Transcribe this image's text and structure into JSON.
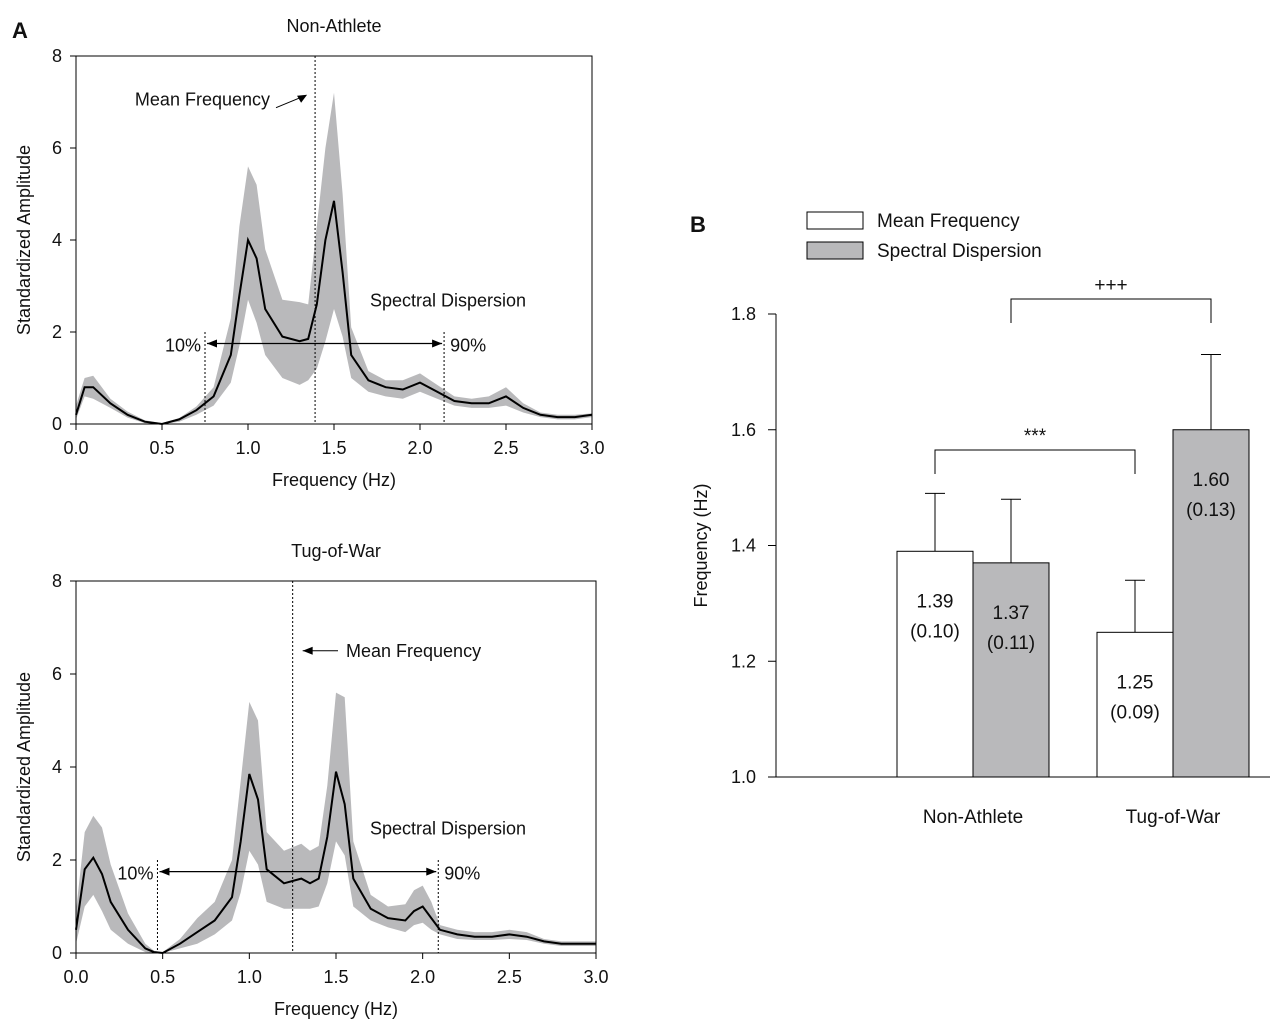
{
  "panel_labels": {
    "a": "A",
    "b": "B"
  },
  "colors": {
    "band": "#b9b9bb",
    "line": "#000000",
    "bar_white": "#ffffff",
    "bar_gray": "#b9b9bb",
    "axis": "#000000"
  },
  "chart_data": [
    {
      "type": "area",
      "panel": "A",
      "title": "Non-Athlete",
      "xlabel": "Frequency (Hz)",
      "ylabel": "Standardized Amplitude",
      "xlim": [
        0,
        3
      ],
      "ylim": [
        0,
        8
      ],
      "xticks": [
        "0.0",
        "0.5",
        "1.0",
        "1.5",
        "2.0",
        "2.5",
        "3.0"
      ],
      "yticks": [
        "0",
        "2",
        "4",
        "6",
        "8"
      ],
      "x": [
        0.0,
        0.05,
        0.1,
        0.2,
        0.3,
        0.4,
        0.5,
        0.6,
        0.7,
        0.8,
        0.9,
        0.95,
        1.0,
        1.05,
        1.1,
        1.2,
        1.3,
        1.35,
        1.4,
        1.45,
        1.5,
        1.55,
        1.6,
        1.7,
        1.8,
        1.9,
        2.0,
        2.1,
        2.2,
        2.3,
        2.4,
        2.5,
        2.6,
        2.7,
        2.8,
        2.9,
        3.0
      ],
      "mean": [
        0.2,
        0.8,
        0.8,
        0.45,
        0.2,
        0.05,
        0.0,
        0.1,
        0.3,
        0.6,
        1.5,
        2.8,
        4.0,
        3.6,
        2.5,
        1.9,
        1.8,
        1.85,
        2.6,
        4.0,
        4.85,
        3.3,
        1.5,
        0.95,
        0.8,
        0.75,
        0.9,
        0.7,
        0.5,
        0.45,
        0.45,
        0.6,
        0.35,
        0.2,
        0.15,
        0.15,
        0.2
      ],
      "upper": [
        0.4,
        1.0,
        1.05,
        0.55,
        0.27,
        0.08,
        0.02,
        0.13,
        0.38,
        0.8,
        2.3,
        4.3,
        5.6,
        5.2,
        3.8,
        2.7,
        2.65,
        2.6,
        4.3,
        6.0,
        7.2,
        5.0,
        2.1,
        1.15,
        0.95,
        0.95,
        1.1,
        0.85,
        0.6,
        0.55,
        0.6,
        0.8,
        0.45,
        0.25,
        0.2,
        0.2,
        0.23
      ],
      "lower": [
        0.1,
        0.6,
        0.55,
        0.35,
        0.14,
        0.02,
        0.0,
        0.05,
        0.2,
        0.4,
        0.9,
        1.7,
        2.7,
        2.2,
        1.5,
        1.0,
        0.85,
        0.95,
        1.2,
        1.8,
        2.5,
        1.9,
        1.0,
        0.7,
        0.6,
        0.55,
        0.7,
        0.55,
        0.4,
        0.35,
        0.35,
        0.4,
        0.25,
        0.15,
        0.1,
        0.1,
        0.15
      ],
      "markers": {
        "mean_frequency": 1.39,
        "p10": 0.75,
        "p90": 2.14
      },
      "annotations": {
        "mean_label": "Mean Frequency",
        "dispersion_label": "Spectral Dispersion",
        "p10_label": "10%",
        "p90_label": "90%"
      }
    },
    {
      "type": "area",
      "panel": "A",
      "title": "Tug-of-War",
      "xlabel": "Frequency (Hz)",
      "ylabel": "Standardized Amplitude",
      "xlim": [
        0,
        3
      ],
      "ylim": [
        0,
        8
      ],
      "xticks": [
        "0.0",
        "0.5",
        "1.0",
        "1.5",
        "2.0",
        "2.5",
        "3.0"
      ],
      "yticks": [
        "0",
        "2",
        "4",
        "6",
        "8"
      ],
      "x": [
        0.0,
        0.05,
        0.1,
        0.15,
        0.2,
        0.3,
        0.4,
        0.45,
        0.5,
        0.6,
        0.7,
        0.8,
        0.9,
        0.95,
        1.0,
        1.05,
        1.1,
        1.2,
        1.3,
        1.35,
        1.4,
        1.45,
        1.5,
        1.55,
        1.6,
        1.7,
        1.8,
        1.9,
        1.95,
        2.0,
        2.05,
        2.1,
        2.2,
        2.3,
        2.4,
        2.5,
        2.6,
        2.7,
        2.8,
        2.9,
        3.0
      ],
      "mean": [
        0.5,
        1.8,
        2.05,
        1.7,
        1.1,
        0.5,
        0.1,
        0.02,
        0.0,
        0.2,
        0.45,
        0.7,
        1.2,
        2.4,
        3.85,
        3.3,
        1.8,
        1.5,
        1.6,
        1.5,
        1.6,
        2.5,
        3.9,
        3.2,
        1.6,
        0.95,
        0.75,
        0.7,
        0.9,
        1.0,
        0.75,
        0.5,
        0.4,
        0.35,
        0.35,
        0.4,
        0.35,
        0.25,
        0.2,
        0.2,
        0.2
      ],
      "upper": [
        0.9,
        2.6,
        2.95,
        2.7,
        1.9,
        0.85,
        0.2,
        0.05,
        0.02,
        0.3,
        0.75,
        1.1,
        2.0,
        3.7,
        5.4,
        5.0,
        2.6,
        2.2,
        2.35,
        2.2,
        2.3,
        3.6,
        5.6,
        5.5,
        2.4,
        1.25,
        1.0,
        1.05,
        1.35,
        1.45,
        1.1,
        0.6,
        0.5,
        0.45,
        0.45,
        0.5,
        0.45,
        0.3,
        0.25,
        0.25,
        0.25
      ],
      "lower": [
        0.2,
        1.0,
        1.25,
        0.9,
        0.5,
        0.2,
        0.02,
        0.0,
        0.0,
        0.1,
        0.2,
        0.4,
        0.7,
        1.3,
        2.2,
        1.9,
        1.1,
        0.95,
        0.95,
        0.95,
        1.0,
        1.5,
        2.4,
        2.1,
        1.0,
        0.7,
        0.55,
        0.45,
        0.6,
        0.65,
        0.5,
        0.4,
        0.3,
        0.28,
        0.28,
        0.3,
        0.28,
        0.2,
        0.15,
        0.15,
        0.15
      ],
      "markers": {
        "mean_frequency": 1.25,
        "p10": 0.47,
        "p90": 2.09
      },
      "annotations": {
        "mean_label": "Mean Frequency",
        "dispersion_label": "Spectral Dispersion",
        "p10_label": "10%",
        "p90_label": "90%"
      }
    },
    {
      "type": "bar",
      "panel": "B",
      "categories": [
        "Non-Athlete",
        "Tug-of-War"
      ],
      "ylabel": "Frequency (Hz)",
      "ylim": [
        1.0,
        1.8
      ],
      "yticks": [
        "1.0",
        "1.2",
        "1.4",
        "1.6",
        "1.8"
      ],
      "legend": "top-left",
      "series": [
        {
          "name": "Mean Frequency",
          "values": [
            1.39,
            1.25
          ],
          "errors": [
            0.1,
            0.09
          ],
          "labels": [
            "1.39",
            "1.25"
          ],
          "sd_labels": [
            "(0.10)",
            "(0.09)"
          ]
        },
        {
          "name": "Spectral Dispersion",
          "values": [
            1.37,
            1.6
          ],
          "errors": [
            0.11,
            0.13
          ],
          "labels": [
            "1.37",
            "1.60"
          ],
          "sd_labels": [
            "(0.11)",
            "(0.13)"
          ]
        }
      ],
      "significance": [
        {
          "label": "***",
          "between": "Mean Frequency"
        },
        {
          "label": "+++",
          "between": "Spectral Dispersion"
        }
      ]
    }
  ]
}
